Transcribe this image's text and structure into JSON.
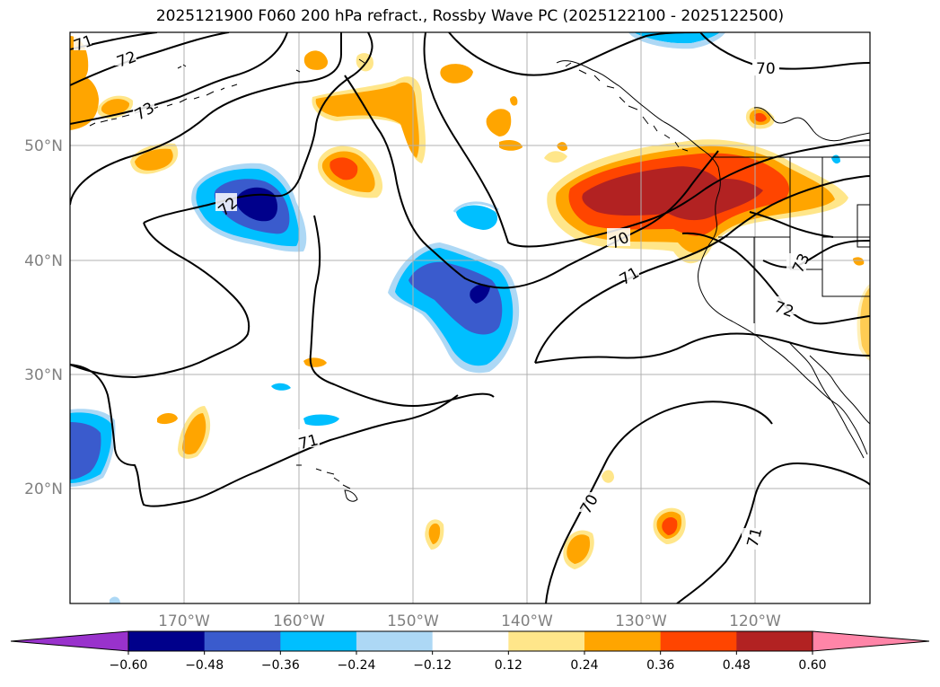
{
  "title": "2025121900 F060 200 hPa refract., Rossby Wave PC (2025122100 - 2025122500)",
  "lat_labels": [
    "50°N",
    "40°N",
    "30°N",
    "20°N"
  ],
  "lon_labels": [
    "170°W",
    "160°W",
    "150°W",
    "140°W",
    "130°W",
    "120°W"
  ],
  "colorbar": {
    "ticks": [
      "−0.60",
      "−0.48",
      "−0.36",
      "−0.24",
      "−0.12",
      "0.12",
      "0.24",
      "0.36",
      "0.48",
      "0.60"
    ],
    "colors": [
      "#9932cc",
      "#00008b",
      "#3a5bcd",
      "#00bfff",
      "#add8f5",
      "#ffffff",
      "#ffe68a",
      "#ffa500",
      "#ff4500",
      "#b22222",
      "#ff85a8"
    ]
  },
  "contour_labels": [
    "71",
    "72",
    "73",
    "72",
    "70",
    "70",
    "71",
    "73",
    "72",
    "71",
    "70",
    "71"
  ],
  "colors": {
    "grid": "#b0b0b0",
    "contour": "#000000",
    "coast": "#000000"
  }
}
